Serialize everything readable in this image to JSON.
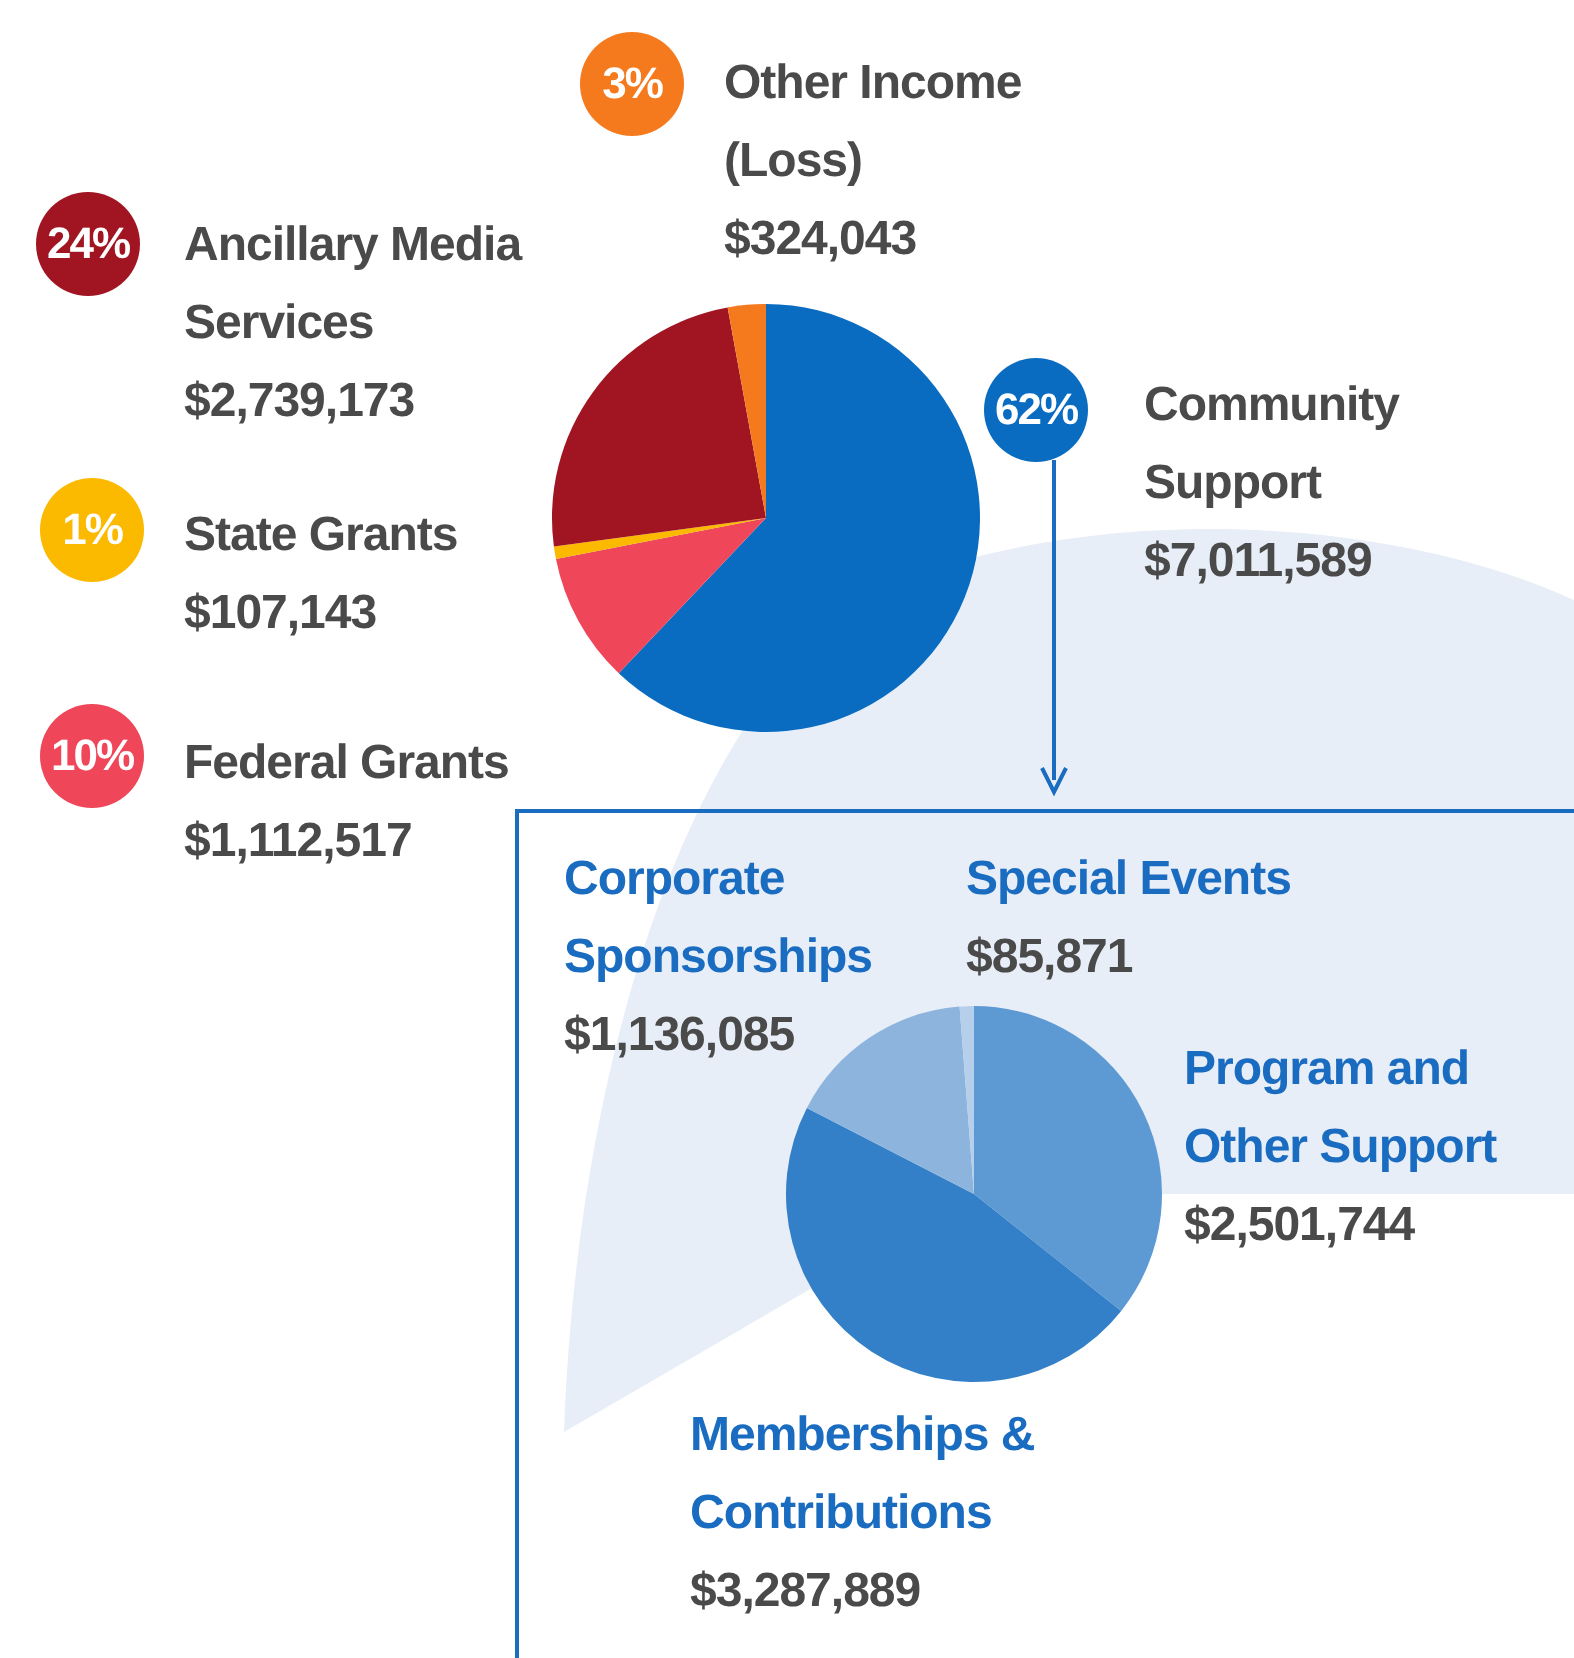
{
  "chart_data": [
    {
      "type": "pie",
      "categories": [
        "Community Support",
        "Federal Grants",
        "State Grants",
        "Ancillary Media Services",
        "Other Income (Loss)"
      ],
      "values": [
        7011589,
        1112517,
        107143,
        2739173,
        324043
      ],
      "colors": [
        "#0a6cc0",
        "#f0465a",
        "#fbb900",
        "#a01521",
        "#f57a1e"
      ],
      "value_labels": [
        "$7,011,589",
        "$1,112,517",
        "$107,143",
        "$2,739,173",
        "$324,043"
      ],
      "annotations": [
        {
          "text": "62%",
          "x": "Community Support"
        },
        {
          "text": "10%",
          "x": "Federal Grants"
        },
        {
          "text": "1%",
          "x": "State Grants"
        },
        {
          "text": "24%",
          "x": "Ancillary Media Services"
        },
        {
          "text": "3%",
          "x": "Other Income (Loss)"
        }
      ],
      "legend": "left"
    },
    {
      "type": "pie",
      "categories": [
        "Program and Other Support",
        "Memberships & Contributions",
        "Corporate Sponsorships",
        "Special Events"
      ],
      "values": [
        2501744,
        3287889,
        1136085,
        85871
      ],
      "colors": [
        "#5d9ad4",
        "#3380c8",
        "#8cb4dd",
        "#b6cfea"
      ],
      "value_labels": [
        "$2,501,744",
        "$3,287,889",
        "$1,136,085",
        "$85,871"
      ]
    }
  ]
}
